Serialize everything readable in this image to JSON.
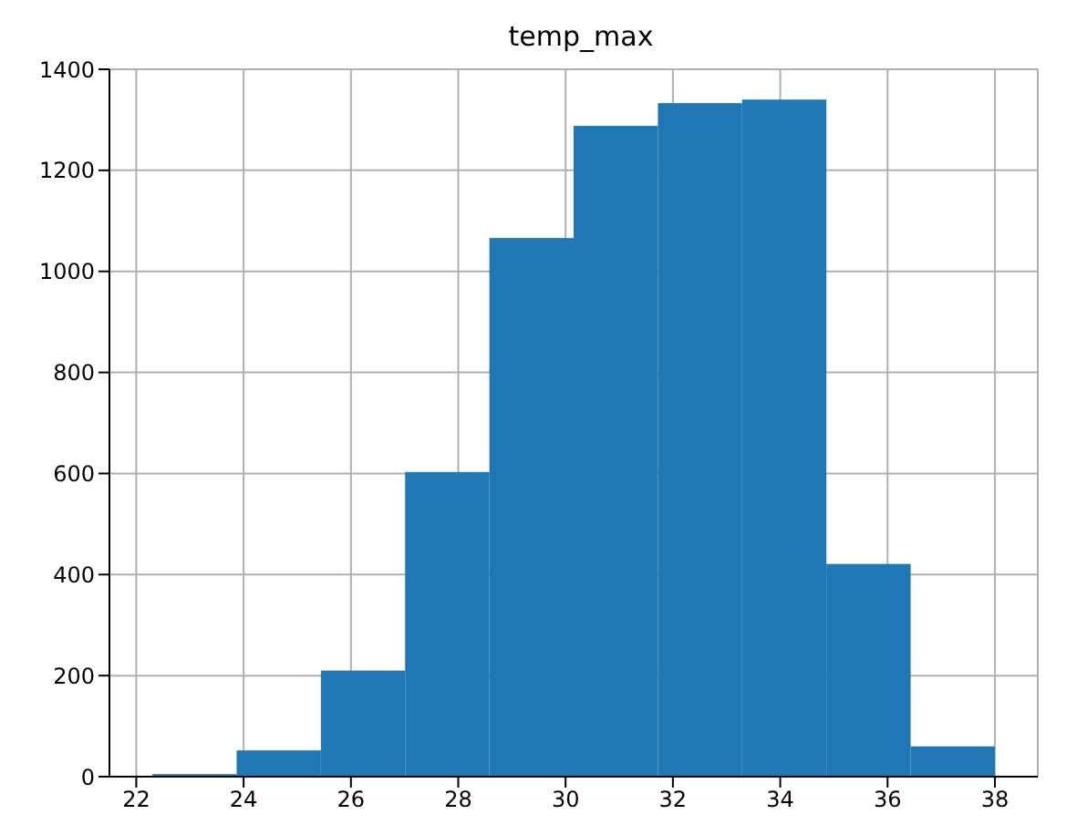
{
  "chart_data": {
    "type": "histogram",
    "title": "temp_max",
    "bins": [
      22.3,
      23.87,
      25.44,
      27.01,
      28.58,
      30.15,
      31.72,
      33.29,
      34.86,
      36.43,
      38.0
    ],
    "values": [
      5,
      52,
      210,
      603,
      1066,
      1288,
      1333,
      1340,
      421,
      60
    ],
    "color": "#1f77b4",
    "xlim": [
      21.5,
      38.8
    ],
    "xticks": [
      22,
      24,
      26,
      28,
      30,
      32,
      34,
      36,
      38
    ],
    "ylim": [
      0,
      1400
    ],
    "yticks": [
      0,
      200,
      400,
      600,
      800,
      1000,
      1200,
      1400
    ],
    "grid": true
  }
}
